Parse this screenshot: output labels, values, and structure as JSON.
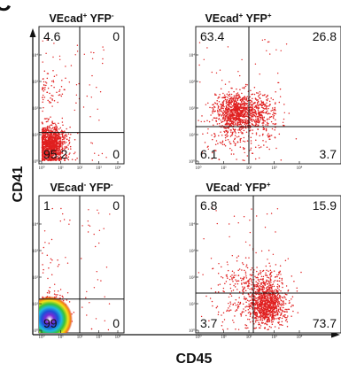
{
  "figure": {
    "panel_letter": "C",
    "xlabel": "CD45",
    "ylabel": "CD41"
  },
  "chart_data": [
    {
      "type": "scatter",
      "title": {
        "base": "VEcad",
        "sup1": "+",
        "mid": " YFP",
        "sup2": "-"
      },
      "quadrants": {
        "upper_left": "4.6",
        "upper_right": "0",
        "lower_left": "95.2",
        "lower_right": "0"
      },
      "x_ticks": [
        "10⁰",
        "10¹",
        "10²",
        "10³",
        "10⁴"
      ],
      "y_ticks": [
        "10⁰",
        "10¹",
        "10²",
        "10³",
        "10⁴"
      ],
      "x_scale": "log",
      "y_scale": "log",
      "xlim": [
        1,
        10000
      ],
      "ylim": [
        1,
        10000
      ],
      "gate_x": 100,
      "gate_y": 12,
      "population_centers_log10": [
        {
          "x": 0.5,
          "y": 0.6,
          "share": 0.952
        },
        {
          "x": 0.4,
          "y": 2.6,
          "share": 0.046
        }
      ]
    },
    {
      "type": "scatter",
      "title": {
        "base": "VEcad",
        "sup1": "+",
        "mid": " YFP",
        "sup2": "+"
      },
      "quadrants": {
        "upper_left": "63.4",
        "upper_right": "26.8",
        "lower_left": "6.1",
        "lower_right": "3.7"
      },
      "x_ticks": [
        "10⁰",
        "10¹",
        "10²",
        "10³",
        "10⁴"
      ],
      "y_ticks": [
        "10⁰",
        "10¹",
        "10²",
        "10³",
        "10⁴"
      ],
      "x_scale": "log",
      "y_scale": "log",
      "xlim": [
        1,
        10000
      ],
      "ylim": [
        1,
        10000
      ],
      "gate_x": 100,
      "gate_y": 20,
      "population_centers_log10": [
        {
          "x": 1.4,
          "y": 1.85,
          "share": 0.634
        },
        {
          "x": 2.4,
          "y": 1.8,
          "share": 0.268
        },
        {
          "x": 1.2,
          "y": 0.8,
          "share": 0.061
        },
        {
          "x": 2.5,
          "y": 0.9,
          "share": 0.037
        }
      ]
    },
    {
      "type": "scatter",
      "title": {
        "base": "VEcad",
        "sup1": "-",
        "mid": " YFP",
        "sup2": "-"
      },
      "quadrants": {
        "upper_left": "1",
        "upper_right": "0",
        "lower_left": "99",
        "lower_right": "0"
      },
      "x_ticks": [
        "10⁰",
        "10¹",
        "10²",
        "10³",
        "10⁴"
      ],
      "y_ticks": [
        "10⁰",
        "10¹",
        "10²",
        "10³",
        "10⁴"
      ],
      "x_scale": "log",
      "y_scale": "log",
      "xlim": [
        1,
        10000
      ],
      "ylim": [
        1,
        10000
      ],
      "gate_x": 100,
      "gate_y": 15,
      "population_centers_log10": [
        {
          "x": 0.45,
          "y": 0.45,
          "share": 0.99
        },
        {
          "x": 0.4,
          "y": 2.6,
          "share": 0.01
        }
      ]
    },
    {
      "type": "scatter",
      "title": {
        "base": "VEcad",
        "sup1": "-",
        "mid": " YFP",
        "sup2": "+"
      },
      "quadrants": {
        "upper_left": "6.8",
        "upper_right": "15.9",
        "lower_left": "3.7",
        "lower_right": "73.7"
      },
      "x_ticks": [
        "10⁰",
        "10¹",
        "10²",
        "10³",
        "10⁴"
      ],
      "y_ticks": [
        "10⁰",
        "10¹",
        "10²",
        "10³",
        "10⁴"
      ],
      "x_scale": "log",
      "y_scale": "log",
      "xlim": [
        1,
        10000
      ],
      "ylim": [
        1,
        10000
      ],
      "gate_x": 150,
      "gate_y": 25,
      "population_centers_log10": [
        {
          "x": 2.7,
          "y": 0.9,
          "share": 0.737
        },
        {
          "x": 2.6,
          "y": 1.8,
          "share": 0.159
        },
        {
          "x": 1.5,
          "y": 1.9,
          "share": 0.068
        },
        {
          "x": 1.3,
          "y": 0.8,
          "share": 0.037
        }
      ]
    }
  ]
}
